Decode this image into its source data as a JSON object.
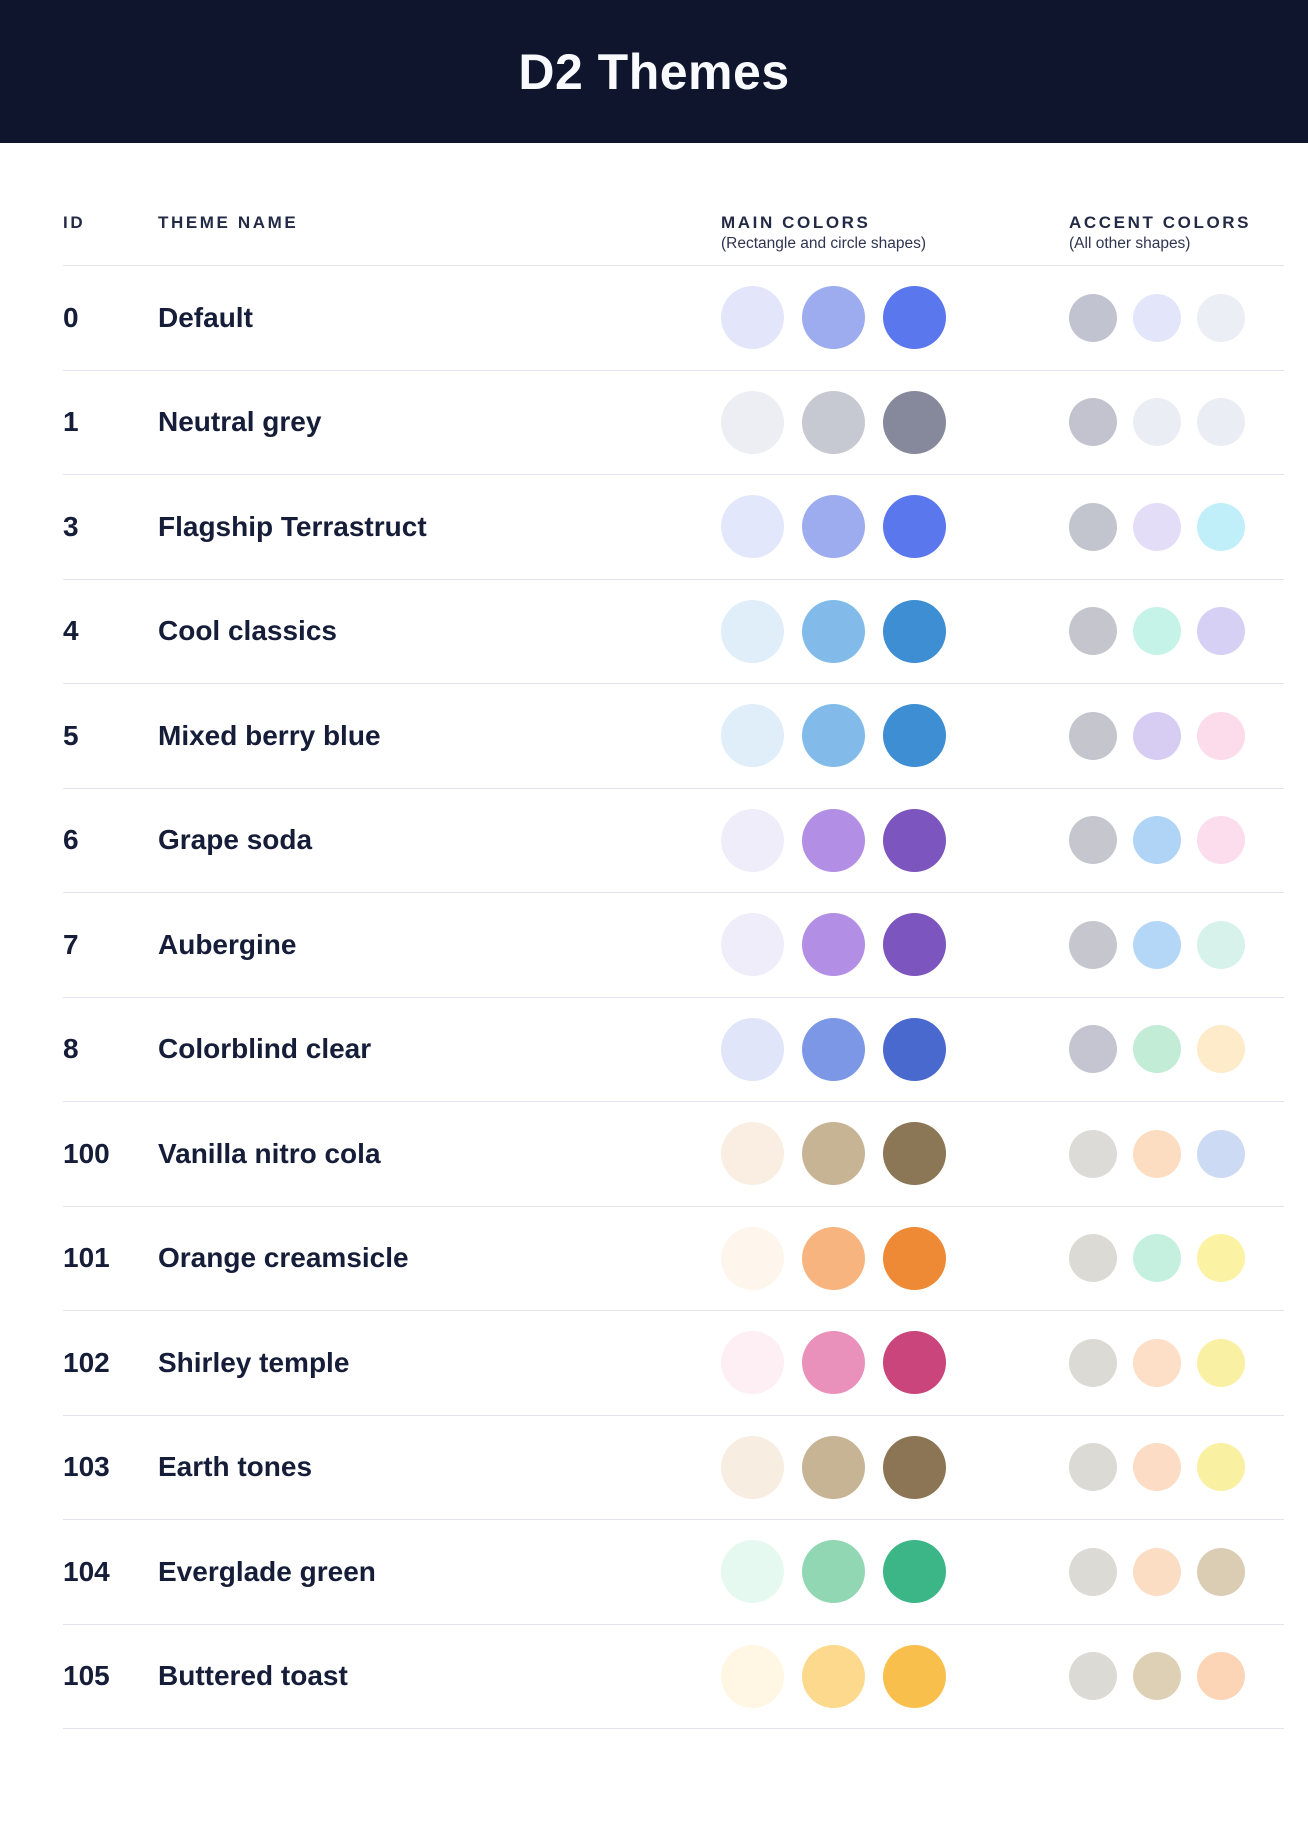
{
  "header": {
    "title": "D2 Themes",
    "background_color": "#0F152D",
    "text_color": "#F9FAFE"
  },
  "columns": {
    "id": "ID",
    "theme_name": "THEME NAME",
    "main_colors": "MAIN COLORS",
    "main_colors_sub": "(Rectangle and circle shapes)",
    "accent_colors": "ACCENT COLORS",
    "accent_colors_sub": "(All other shapes)"
  },
  "style_colors": {
    "row_separator": "#E1E3EE",
    "row_text": "#161D38",
    "column_header_text": "#232A45"
  },
  "themes": [
    {
      "id": "0",
      "name": "Default",
      "main": [
        "#E3E6FB",
        "#9DABEF",
        "#5B77EE"
      ],
      "accent": [
        "#C2C3D1",
        "#E3E5FA",
        "#ECEEF6"
      ]
    },
    {
      "id": "1",
      "name": "Neutral grey",
      "main": [
        "#ECEEF4",
        "#C6C8D2",
        "#86899B"
      ],
      "accent": [
        "#C2C3CF",
        "#EBEDF4",
        "#EBEDF4"
      ]
    },
    {
      "id": "3",
      "name": "Flagship Terrastruct",
      "main": [
        "#E3E7FB",
        "#9DABEF",
        "#5B77EE"
      ],
      "accent": [
        "#C2C4CE",
        "#E3DDF8",
        "#C0EFFA"
      ]
    },
    {
      "id": "4",
      "name": "Cool classics",
      "main": [
        "#E0EEFA",
        "#82BBE9",
        "#3D8ED2"
      ],
      "accent": [
        "#C5C6CD",
        "#C6F3E7",
        "#D6D0F4"
      ]
    },
    {
      "id": "5",
      "name": "Mixed berry blue",
      "main": [
        "#E0EEFA",
        "#82BBE9",
        "#3D8ED2"
      ],
      "accent": [
        "#C5C6CD",
        "#D7CDF3",
        "#FCDBEA"
      ]
    },
    {
      "id": "6",
      "name": "Grape soda",
      "main": [
        "#F0EDFA",
        "#B28EE5",
        "#7C55BF"
      ],
      "accent": [
        "#C6C7CE",
        "#AFD4F6",
        "#FBDDED"
      ]
    },
    {
      "id": "7",
      "name": "Aubergine",
      "main": [
        "#F0EDFA",
        "#B28EE5",
        "#7C55BF"
      ],
      "accent": [
        "#C6C7CE",
        "#B4D7F7",
        "#D7F2EA"
      ]
    },
    {
      "id": "8",
      "name": "Colorblind clear",
      "main": [
        "#E0E5F9",
        "#7B97E6",
        "#4A69CE"
      ],
      "accent": [
        "#C4C5D1",
        "#C2ECD5",
        "#FDEBC9"
      ]
    },
    {
      "id": "100",
      "name": "Vanilla nitro cola",
      "main": [
        "#F9EEE1",
        "#C7B495",
        "#8B7656"
      ],
      "accent": [
        "#DDDBD7",
        "#FCDDC1",
        "#CDDAF4"
      ]
    },
    {
      "id": "101",
      "name": "Orange creamsicle",
      "main": [
        "#FEF5ED",
        "#F7B47E",
        "#EE8935"
      ],
      "accent": [
        "#DCDAD4",
        "#C5F0DF",
        "#FBF2A4"
      ]
    },
    {
      "id": "102",
      "name": "Shirley temple",
      "main": [
        "#FDEFF4",
        "#E991BB",
        "#CA457C"
      ],
      "accent": [
        "#DCDAD4",
        "#FDDEC7",
        "#FAF0A3"
      ]
    },
    {
      "id": "103",
      "name": "Earth tones",
      "main": [
        "#F8EDE1",
        "#C7B495",
        "#8B7554"
      ],
      "accent": [
        "#DCDAD5",
        "#FCDCC4",
        "#FAF0A2"
      ]
    },
    {
      "id": "104",
      "name": "Everglade green",
      "main": [
        "#E6F9F1",
        "#92D7B4",
        "#3CB687"
      ],
      "accent": [
        "#DCDAD5",
        "#FBDDC4",
        "#DACDB4"
      ]
    },
    {
      "id": "105",
      "name": "Buttered toast",
      "main": [
        "#FFF7E3",
        "#FCD98C",
        "#F8BF4C"
      ],
      "accent": [
        "#DCDAD5",
        "#DDD0B5",
        "#FCD4B6"
      ]
    }
  ]
}
